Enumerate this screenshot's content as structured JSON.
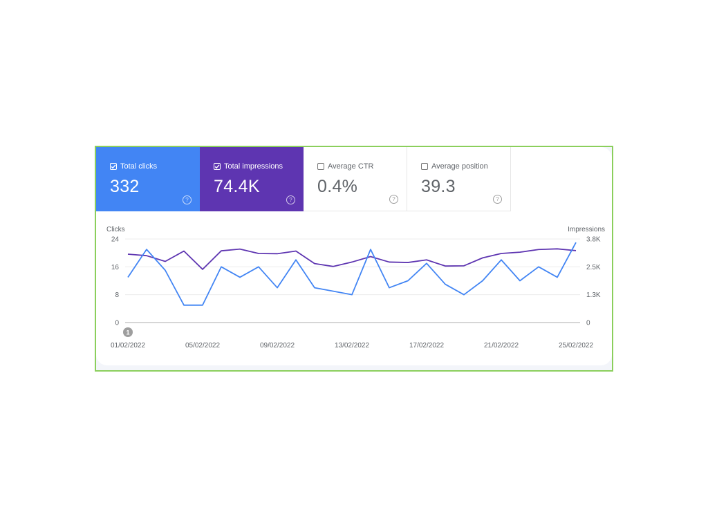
{
  "metrics": [
    {
      "label": "Total clicks",
      "value": "332",
      "checked": true,
      "color": "#4285f4"
    },
    {
      "label": "Total impressions",
      "value": "74.4K",
      "checked": true,
      "color": "#5e35b1"
    },
    {
      "label": "Average CTR",
      "value": "0.4%",
      "checked": false
    },
    {
      "label": "Average position",
      "value": "39.3",
      "checked": false
    }
  ],
  "help_glyph": "?",
  "annotation": {
    "label": "1",
    "date": "01/02/2022"
  },
  "chart_data": {
    "type": "line",
    "title": "",
    "xlabel": "",
    "ylabel": "Clicks",
    "ylabel_right": "Impressions",
    "ylim": [
      0,
      24
    ],
    "ylim_right": [
      0,
      3800
    ],
    "yticks": [
      "0",
      "8",
      "16",
      "24"
    ],
    "yticks_right": [
      "0",
      "1.3K",
      "2.5K",
      "3.8K"
    ],
    "xtick_labels": [
      "01/02/2022",
      "05/02/2022",
      "09/02/2022",
      "13/02/2022",
      "17/02/2022",
      "21/02/2022",
      "25/02/2022"
    ],
    "grid": true,
    "legend": "metric cards above chart",
    "x": [
      "01/02/2022",
      "02/02/2022",
      "03/02/2022",
      "04/02/2022",
      "05/02/2022",
      "06/02/2022",
      "07/02/2022",
      "08/02/2022",
      "09/02/2022",
      "10/02/2022",
      "11/02/2022",
      "12/02/2022",
      "13/02/2022",
      "14/02/2022",
      "15/02/2022",
      "16/02/2022",
      "17/02/2022",
      "18/02/2022",
      "19/02/2022",
      "20/02/2022",
      "21/02/2022",
      "22/02/2022",
      "23/02/2022",
      "24/02/2022",
      "25/02/2022"
    ],
    "series": [
      {
        "name": "Clicks",
        "axis": "left",
        "color": "#4285f4",
        "values": [
          13,
          21,
          15,
          5,
          5,
          16,
          13,
          16,
          10,
          18,
          10,
          9,
          8,
          21,
          10,
          12,
          17,
          11,
          8,
          12,
          18,
          12,
          16,
          13,
          23
        ]
      },
      {
        "name": "Impressions",
        "axis": "right",
        "color": "#5e35b1",
        "values": [
          3110,
          3040,
          2780,
          3250,
          2420,
          3260,
          3340,
          3140,
          3130,
          3250,
          2680,
          2550,
          2750,
          3000,
          2750,
          2730,
          2850,
          2570,
          2580,
          2940,
          3140,
          3200,
          3320,
          3350,
          3270
        ]
      }
    ]
  }
}
